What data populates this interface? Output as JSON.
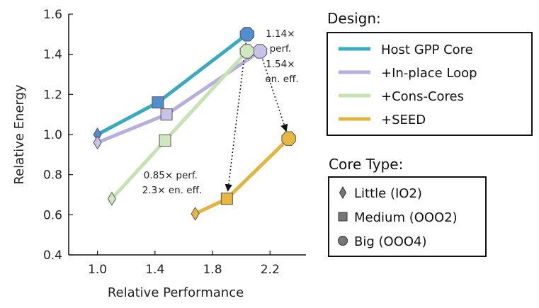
{
  "chart_data": {
    "type": "line",
    "xlabel": "Relative Performance",
    "ylabel": "Relative Energy",
    "xlim": [
      0.8,
      2.45
    ],
    "ylim": [
      0.4,
      1.6
    ],
    "xticks": [
      1.0,
      1.4,
      1.8,
      2.2
    ],
    "xtick_labels": [
      "1.0",
      "1.4",
      "1.8",
      "2.2"
    ],
    "yticks": [
      0.4,
      0.6,
      0.8,
      1.0,
      1.2,
      1.4,
      1.6
    ],
    "ytick_labels": [
      "0.4",
      "0.6",
      "0.8",
      "1.0",
      "1.2",
      "1.4",
      "1.6"
    ],
    "grid": false,
    "series": [
      {
        "name": "Host GPP Core",
        "color": "#3aaabf",
        "points": [
          {
            "core": "Little (IO2)",
            "x": 1.0,
            "y": 1.0
          },
          {
            "core": "Medium (OOO2)",
            "x": 1.42,
            "y": 1.16
          },
          {
            "core": "Big (OOO4)",
            "x": 2.04,
            "y": 1.5
          }
        ]
      },
      {
        "name": "+In-place Loop",
        "color": "#b6aedc",
        "points": [
          {
            "core": "Little (IO2)",
            "x": 1.0,
            "y": 0.96
          },
          {
            "core": "Medium (OOO2)",
            "x": 1.48,
            "y": 1.1
          },
          {
            "core": "Big (OOO4)",
            "x": 2.13,
            "y": 1.415
          }
        ]
      },
      {
        "name": "+Cons-Cores",
        "color": "#c6e2b3",
        "points": [
          {
            "core": "Little (IO2)",
            "x": 1.1,
            "y": 0.68
          },
          {
            "core": "Medium (OOO2)",
            "x": 1.47,
            "y": 0.97
          },
          {
            "core": "Big (OOO4)",
            "x": 2.04,
            "y": 1.415
          }
        ]
      },
      {
        "name": "+SEED",
        "color": "#e3b440",
        "points": [
          {
            "core": "Little (IO2)",
            "x": 1.68,
            "y": 0.605
          },
          {
            "core": "Medium (OOO2)",
            "x": 1.9,
            "y": 0.68
          },
          {
            "core": "Big (OOO4)",
            "x": 2.33,
            "y": 0.98
          }
        ]
      }
    ],
    "annotations": [
      {
        "lines": [
          "1.14×",
          "perf.",
          "1.54×",
          "en. eff."
        ]
      },
      {
        "lines": [
          "0.85× perf.",
          "2.3× en. eff."
        ]
      }
    ],
    "arrows": [
      {
        "from": {
          "x": 2.04,
          "y": 1.5
        },
        "to": {
          "x": 1.9,
          "y": 0.68
        }
      },
      {
        "from": {
          "x": 2.13,
          "y": 1.415
        },
        "to": {
          "x": 2.33,
          "y": 0.98
        }
      }
    ],
    "legend_design": {
      "title": "Design:",
      "entries": [
        "Host GPP Core",
        "+In-place Loop",
        "+Cons-Cores",
        "+SEED"
      ],
      "placement": "top-right"
    },
    "legend_core": {
      "title": "Core Type:",
      "entries": [
        {
          "label": "Little (IO2)",
          "marker": "diamond"
        },
        {
          "label": "Medium (OOO2)",
          "marker": "square"
        },
        {
          "label": "Big (OOO4)",
          "marker": "circle"
        }
      ],
      "placement": "bottom-right"
    }
  }
}
